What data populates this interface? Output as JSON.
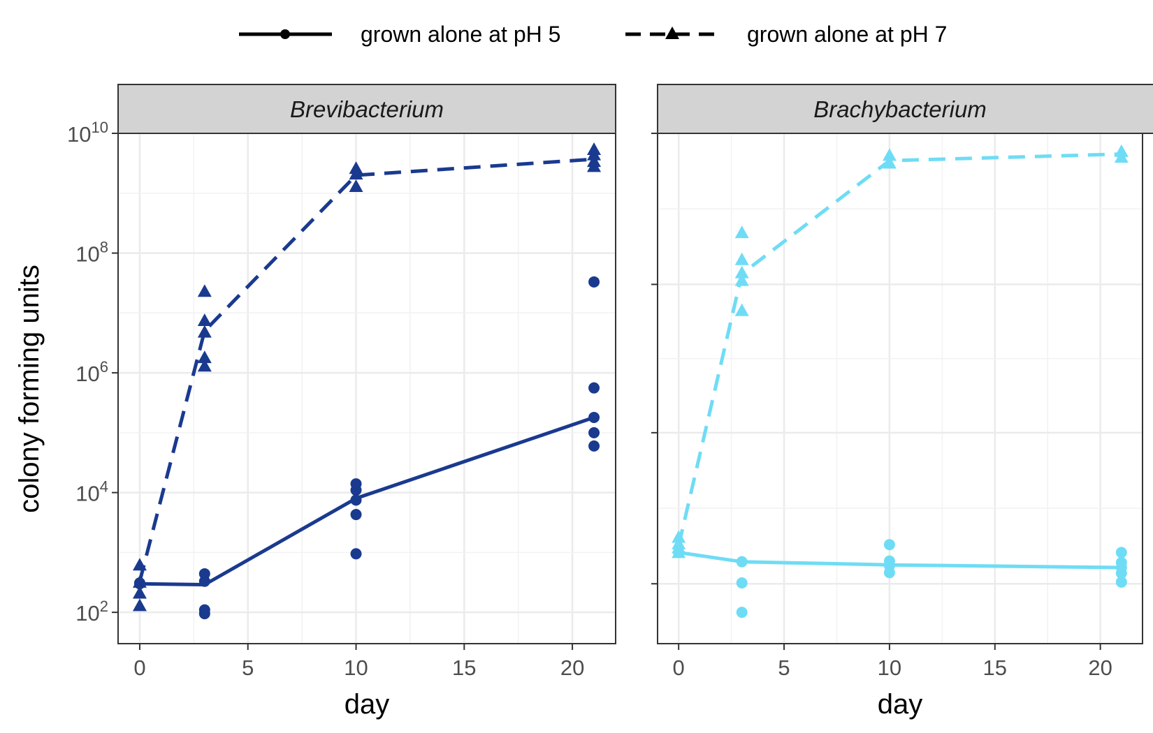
{
  "legend": {
    "items": [
      {
        "label": "grown alone at pH 5",
        "line": "solid",
        "marker": "circle"
      },
      {
        "label": "grown alone at pH 7",
        "line": "dashed",
        "marker": "triangle"
      }
    ]
  },
  "chart_data": [
    {
      "type": "line",
      "panel_title": "Brevibacterium",
      "xlabel": "day",
      "ylabel": "colony forming units",
      "y_scale": "log10",
      "xlim": [
        -1,
        22
      ],
      "ylim": [
        30,
        10000000000
      ],
      "x_ticks": [
        0,
        5,
        10,
        15,
        20
      ],
      "y_ticks": [
        100,
        10000,
        1000000,
        100000000,
        10000000000
      ],
      "y_tick_labels": [
        {
          "base": "10",
          "exp": "2"
        },
        {
          "base": "10",
          "exp": "4"
        },
        {
          "base": "10",
          "exp": "6"
        },
        {
          "base": "10",
          "exp": "8"
        },
        {
          "base": "10",
          "exp": "10"
        }
      ],
      "grid": true,
      "color": "#1a3a8f",
      "series": [
        {
          "name": "grown alone at pH 5",
          "line": [
            [
              0,
              300
            ],
            [
              3,
              290
            ],
            [
              10,
              8000
            ],
            [
              21,
              180000
            ]
          ],
          "points": [
            [
              0,
              300
            ],
            [
              0,
              310
            ],
            [
              3,
              440
            ],
            [
              3,
              330
            ],
            [
              3,
              110
            ],
            [
              3,
              95
            ],
            [
              10,
              14000
            ],
            [
              10,
              11000
            ],
            [
              10,
              7500
            ],
            [
              10,
              4300
            ],
            [
              10,
              950
            ],
            [
              21,
              33000000
            ],
            [
              21,
              560000
            ],
            [
              21,
              180000
            ],
            [
              21,
              100000
            ],
            [
              21,
              60000
            ]
          ]
        },
        {
          "name": "grown alone at pH 7",
          "line": [
            [
              0,
              330
            ],
            [
              3,
              5000000
            ],
            [
              10,
              2000000000
            ],
            [
              21,
              3700000000
            ]
          ],
          "points": [
            [
              0,
              620
            ],
            [
              0,
              320
            ],
            [
              0,
              210
            ],
            [
              0,
              130
            ],
            [
              3,
              23000000
            ],
            [
              3,
              7500000
            ],
            [
              3,
              4800000
            ],
            [
              3,
              1800000
            ],
            [
              3,
              1300000
            ],
            [
              10,
              2600000000
            ],
            [
              10,
              2100000000
            ],
            [
              10,
              1300000000
            ],
            [
              21,
              5400000000
            ],
            [
              21,
              4400000000
            ],
            [
              21,
              3400000000
            ],
            [
              21,
              2800000000
            ]
          ]
        }
      ]
    },
    {
      "type": "line",
      "panel_title": "Brachybacterium",
      "xlabel": "day",
      "ylabel": "",
      "y_scale": "log10",
      "xlim": [
        -1,
        22
      ],
      "ylim": [
        30,
        10000000000
      ],
      "x_ticks": [
        0,
        5,
        10,
        15,
        20
      ],
      "y_ticks": [
        300,
        100000,
        30000000,
        10000000000
      ],
      "y_tick_labels": [],
      "grid": true,
      "color": "#6fdcf5",
      "series": [
        {
          "name": "grown alone at pH 5",
          "line": [
            [
              0,
              1000
            ],
            [
              3,
              700
            ],
            [
              10,
              620
            ],
            [
              21,
              560
            ]
          ],
          "points": [
            [
              0,
              1000
            ],
            [
              3,
              700
            ],
            [
              3,
              310
            ],
            [
              3,
              100
            ],
            [
              10,
              1350
            ],
            [
              10,
              720
            ],
            [
              10,
              600
            ],
            [
              10,
              460
            ],
            [
              21,
              1000
            ],
            [
              21,
              680
            ],
            [
              21,
              560
            ],
            [
              21,
              450
            ],
            [
              21,
              320
            ]
          ]
        },
        {
          "name": "grown alone at pH 7",
          "line": [
            [
              0,
              1300
            ],
            [
              3,
              45000000
            ],
            [
              10,
              3500000000
            ],
            [
              21,
              4500000000
            ]
          ],
          "points": [
            [
              0,
              1800
            ],
            [
              0,
              1400
            ],
            [
              0,
              1200
            ],
            [
              0,
              1000
            ],
            [
              3,
              220000000
            ],
            [
              3,
              78000000
            ],
            [
              3,
              47000000
            ],
            [
              3,
              35000000
            ],
            [
              3,
              11000000
            ],
            [
              10,
              4300000000
            ],
            [
              10,
              3200000000
            ],
            [
              21,
              5000000000
            ],
            [
              21,
              4000000000
            ]
          ]
        }
      ]
    }
  ]
}
